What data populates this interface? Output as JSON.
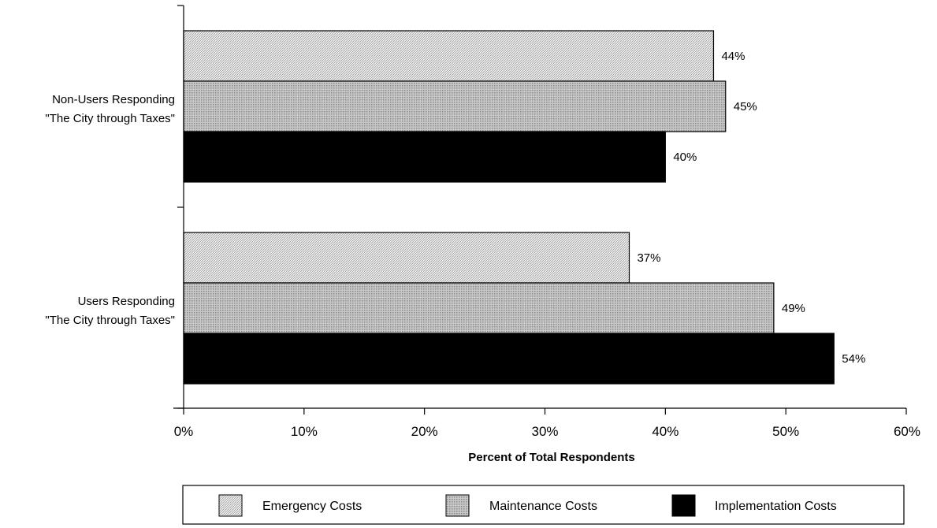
{
  "chart_data": {
    "type": "bar",
    "orientation": "horizontal",
    "categories": [
      {
        "line1": "Non-Users Responding",
        "line2": "\"The City through Taxes\""
      },
      {
        "line1": "Users Responding",
        "line2": "\"The City through Taxes\""
      }
    ],
    "series": [
      {
        "name": "Emergency Costs",
        "values": [
          44,
          37
        ],
        "pattern": "diagonal-light"
      },
      {
        "name": "Maintenance Costs",
        "values": [
          45,
          49
        ],
        "pattern": "dotted-gray"
      },
      {
        "name": "Implementation Costs",
        "values": [
          40,
          54
        ],
        "pattern": "solid-black"
      }
    ],
    "value_labels": [
      [
        "44%",
        "37%"
      ],
      [
        "45%",
        "49%"
      ],
      [
        "40%",
        "54%"
      ]
    ],
    "xlim": [
      0,
      60
    ],
    "xticks": [
      0,
      10,
      20,
      30,
      40,
      50,
      60
    ],
    "xtick_labels": [
      "0%",
      "10%",
      "20%",
      "30%",
      "40%",
      "50%",
      "60%"
    ],
    "xlabel": "Percent of Total Respondents",
    "legend_position": "bottom",
    "grid": false
  }
}
